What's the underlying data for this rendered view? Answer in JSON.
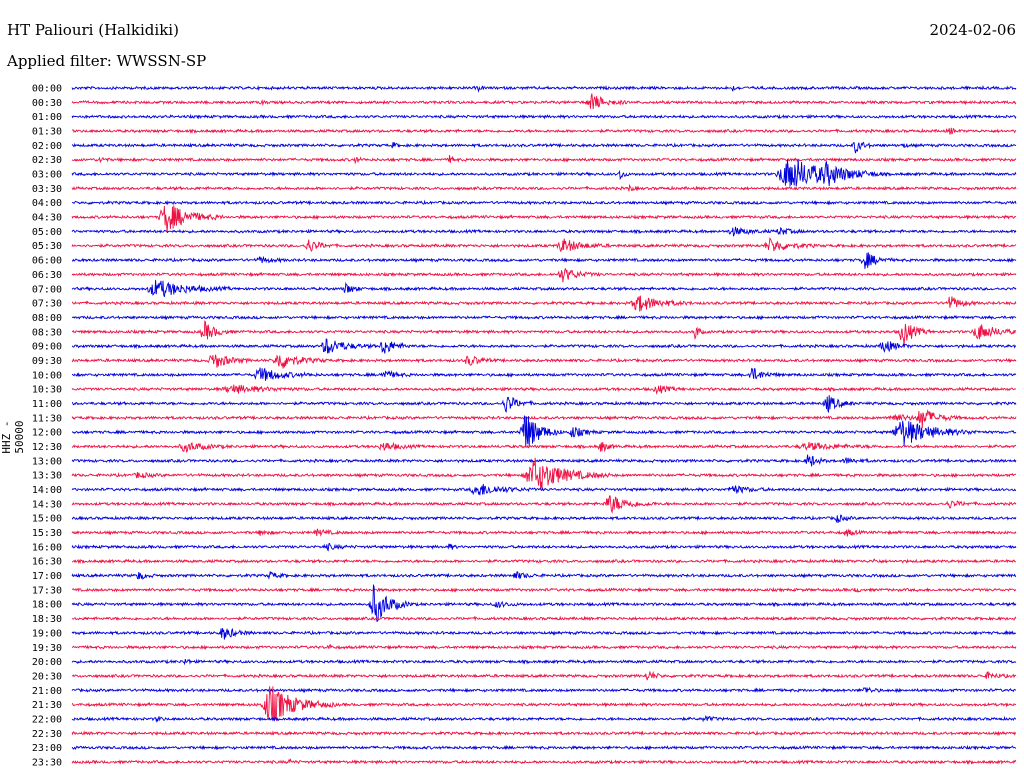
{
  "header": {
    "station": "HT Paliouri (Halkidiki)",
    "date": "2024-02-06",
    "filter": "Applied filter: WWSSN-SP"
  },
  "colors": {
    "trace_a": "#0000dd",
    "trace_b": "#ee1144"
  },
  "chart_data": {
    "type": "line",
    "ylabel": "HHZ - 50000",
    "rows": [
      {
        "time": "00:00",
        "bursts": [
          [
            0.43,
            0.4,
            1
          ],
          [
            0.7,
            0.3,
            1
          ]
        ]
      },
      {
        "time": "00:30",
        "bursts": [
          [
            0.2,
            0.3,
            1
          ],
          [
            0.55,
            1.2,
            4
          ]
        ]
      },
      {
        "time": "01:00",
        "bursts": []
      },
      {
        "time": "01:30",
        "bursts": [
          [
            0.93,
            0.6,
            1
          ]
        ]
      },
      {
        "time": "02:00",
        "bursts": [
          [
            0.34,
            0.4,
            1
          ],
          [
            0.83,
            1.0,
            2
          ],
          [
            0.88,
            0.4,
            1
          ]
        ]
      },
      {
        "time": "02:30",
        "bursts": [
          [
            0.03,
            0.5,
            1
          ],
          [
            0.3,
            0.5,
            1
          ],
          [
            0.4,
            0.5,
            1
          ]
        ]
      },
      {
        "time": "03:00",
        "bursts": [
          [
            0.58,
            1.0,
            1
          ],
          [
            0.76,
            2.5,
            10
          ],
          [
            0.8,
            1.0,
            5
          ]
        ]
      },
      {
        "time": "03:30",
        "bursts": [
          [
            0.59,
            0.5,
            1
          ]
        ]
      },
      {
        "time": "04:00",
        "bursts": []
      },
      {
        "time": "04:30",
        "bursts": [
          [
            0.1,
            2.2,
            6
          ]
        ]
      },
      {
        "time": "05:00",
        "bursts": [
          [
            0.7,
            0.6,
            4
          ],
          [
            0.75,
            0.5,
            3
          ]
        ]
      },
      {
        "time": "05:30",
        "bursts": [
          [
            0.25,
            1.0,
            3
          ],
          [
            0.52,
            1.0,
            5
          ],
          [
            0.74,
            1.0,
            5
          ]
        ]
      },
      {
        "time": "06:00",
        "bursts": [
          [
            0.2,
            0.4,
            3
          ],
          [
            0.84,
            1.3,
            3
          ]
        ]
      },
      {
        "time": "06:30",
        "bursts": [
          [
            0.52,
            1.0,
            4
          ]
        ]
      },
      {
        "time": "07:00",
        "bursts": [
          [
            0.09,
            1.3,
            8
          ],
          [
            0.29,
            0.8,
            2
          ]
        ]
      },
      {
        "time": "07:30",
        "bursts": [
          [
            0.6,
            1.2,
            6
          ],
          [
            0.93,
            1.0,
            3
          ]
        ]
      },
      {
        "time": "08:00",
        "bursts": []
      },
      {
        "time": "08:30",
        "bursts": [
          [
            0.14,
            1.5,
            3
          ],
          [
            0.66,
            1.3,
            1
          ],
          [
            0.88,
            2.0,
            3
          ],
          [
            0.96,
            1.2,
            5
          ]
        ]
      },
      {
        "time": "09:00",
        "bursts": [
          [
            0.27,
            1.2,
            5
          ],
          [
            0.33,
            1.3,
            3
          ],
          [
            0.86,
            1.0,
            3
          ]
        ]
      },
      {
        "time": "09:30",
        "bursts": [
          [
            0.15,
            1.2,
            4
          ],
          [
            0.22,
            1.3,
            5
          ],
          [
            0.42,
            0.8,
            3
          ]
        ]
      },
      {
        "time": "10:00",
        "bursts": [
          [
            0.2,
            1.0,
            6
          ],
          [
            0.33,
            0.6,
            3
          ],
          [
            0.72,
            1.0,
            3
          ]
        ]
      },
      {
        "time": "10:30",
        "bursts": [
          [
            0.17,
            0.6,
            8
          ],
          [
            0.62,
            0.6,
            3
          ]
        ]
      },
      {
        "time": "11:00",
        "bursts": [
          [
            0.46,
            1.3,
            3
          ],
          [
            0.8,
            1.3,
            3
          ]
        ]
      },
      {
        "time": "11:30",
        "bursts": [
          [
            0.87,
            0.6,
            4
          ],
          [
            0.9,
            1.5,
            4
          ]
        ]
      },
      {
        "time": "12:00",
        "bursts": [
          [
            0.48,
            3.0,
            4
          ],
          [
            0.53,
            0.8,
            3
          ],
          [
            0.88,
            2.0,
            8
          ]
        ]
      },
      {
        "time": "12:30",
        "bursts": [
          [
            0.12,
            0.7,
            5
          ],
          [
            0.33,
            0.6,
            4
          ],
          [
            0.56,
            0.8,
            2
          ],
          [
            0.78,
            0.5,
            8
          ]
        ]
      },
      {
        "time": "13:00",
        "bursts": [
          [
            0.78,
            1.2,
            2
          ],
          [
            0.82,
            0.4,
            3
          ]
        ]
      },
      {
        "time": "13:30",
        "bursts": [
          [
            0.07,
            0.4,
            3
          ],
          [
            0.49,
            2.5,
            8
          ]
        ]
      },
      {
        "time": "14:00",
        "bursts": [
          [
            0.43,
            1.0,
            6
          ],
          [
            0.7,
            0.6,
            4
          ]
        ]
      },
      {
        "time": "14:30",
        "bursts": [
          [
            0.57,
            1.3,
            5
          ],
          [
            0.93,
            0.5,
            3
          ]
        ]
      },
      {
        "time": "15:00",
        "bursts": [
          [
            0.81,
            0.6,
            2
          ]
        ]
      },
      {
        "time": "15:30",
        "bursts": [
          [
            0.2,
            0.4,
            2
          ],
          [
            0.26,
            0.4,
            3
          ],
          [
            0.82,
            0.5,
            2
          ]
        ]
      },
      {
        "time": "16:00",
        "bursts": [
          [
            0.27,
            0.4,
            3
          ],
          [
            0.4,
            0.5,
            1
          ]
        ]
      },
      {
        "time": "16:30",
        "bursts": [
          [
            0.85,
            0.3,
            1
          ]
        ]
      },
      {
        "time": "17:00",
        "bursts": [
          [
            0.07,
            0.6,
            2
          ],
          [
            0.21,
            0.5,
            2
          ],
          [
            0.47,
            0.5,
            3
          ]
        ]
      },
      {
        "time": "17:30",
        "bursts": [
          [
            0.83,
            0.4,
            1
          ]
        ]
      },
      {
        "time": "18:00",
        "bursts": [
          [
            0.32,
            3.0,
            4
          ],
          [
            0.45,
            0.4,
            3
          ]
        ]
      },
      {
        "time": "18:30",
        "bursts": []
      },
      {
        "time": "19:00",
        "bursts": [
          [
            0.16,
            1.0,
            3
          ]
        ]
      },
      {
        "time": "19:30",
        "bursts": [
          [
            0.27,
            0.6,
            1
          ]
        ]
      },
      {
        "time": "20:00",
        "bursts": [
          [
            0.12,
            0.5,
            1
          ]
        ]
      },
      {
        "time": "20:30",
        "bursts": [
          [
            0.61,
            0.8,
            2
          ],
          [
            0.97,
            0.4,
            3
          ]
        ]
      },
      {
        "time": "21:00",
        "bursts": [
          [
            0.84,
            0.5,
            2
          ]
        ]
      },
      {
        "time": "21:30",
        "bursts": [
          [
            0.21,
            2.8,
            7
          ]
        ]
      },
      {
        "time": "22:00",
        "bursts": [
          [
            0.09,
            0.5,
            1
          ],
          [
            0.67,
            0.4,
            2
          ]
        ]
      },
      {
        "time": "22:30",
        "bursts": []
      },
      {
        "time": "23:00",
        "bursts": []
      },
      {
        "time": "23:30",
        "bursts": [
          [
            0.23,
            0.3,
            1
          ]
        ]
      }
    ]
  }
}
